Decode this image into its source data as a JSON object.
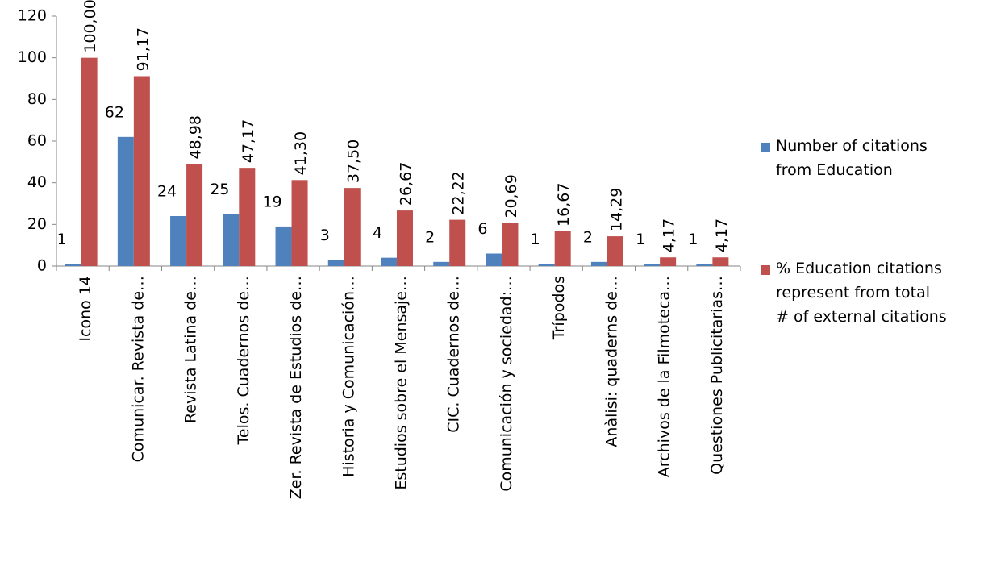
{
  "chart_data": {
    "type": "bar",
    "categories": [
      "Icono 14",
      "Comunicar. Revista de…",
      "Revista Latina de…",
      "Telos. Cuadernos de…",
      "Zer. Revista de Estudios de…",
      "Historia y Comunicación…",
      "Estudios sobre el Mensaje…",
      "CIC. Cuadernos de…",
      "Comunicación y sociedad:…",
      "Trípodos",
      "Anàlisi: quaderns de…",
      "Archivos de la Filmoteca…",
      "Questiones Publicitarias…"
    ],
    "series": [
      {
        "name": "Number of citations from Education",
        "color": "#4f81bd",
        "values": [
          1,
          62,
          24,
          25,
          19,
          3,
          4,
          2,
          6,
          1,
          2,
          1,
          1
        ]
      },
      {
        "name": "% Education citations represent from total # of external citations",
        "color": "#c0504d",
        "values": [
          100,
          91.17,
          48.98,
          47.17,
          41.3,
          37.5,
          26.67,
          22.22,
          20.69,
          16.67,
          14.29,
          4.17,
          4.17
        ],
        "value_labels": [
          "100,00",
          "91,17",
          "48,98",
          "47,17",
          "41,30",
          "37,50",
          "26,67",
          "22,22",
          "20,69",
          "16,67",
          "14,29",
          "4,17",
          "4,17"
        ]
      }
    ],
    "ylim": [
      0,
      120
    ],
    "yticks": [
      0,
      20,
      40,
      60,
      80,
      100,
      120
    ],
    "grid": false,
    "legend": "right"
  }
}
